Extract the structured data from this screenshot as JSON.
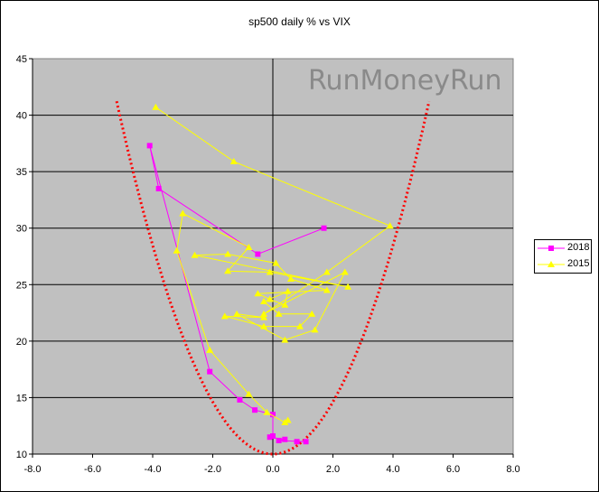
{
  "chart_data": {
    "type": "scatter",
    "title": "sp500 daily % vs VIX",
    "xlabel": "",
    "ylabel": "",
    "xlim": [
      -8,
      8
    ],
    "ylim": [
      10,
      45
    ],
    "x_ticks": [
      "-8.0",
      "-6.0",
      "-4.0",
      "-2.0",
      "0.0",
      "2.0",
      "4.0",
      "6.0",
      "8.0"
    ],
    "y_ticks": [
      "10",
      "15",
      "20",
      "25",
      "30",
      "35",
      "40",
      "45"
    ],
    "grid": "horizontal",
    "legend_position": "right",
    "plot_background": "#c0c0c0",
    "watermark": "RunMoneyRun",
    "series": [
      {
        "name": "2018",
        "color": "#ff00ff",
        "marker": "square",
        "connected": true,
        "points": [
          [
            0.8,
            11.1
          ],
          [
            1.1,
            11.1
          ],
          [
            0.2,
            11.2
          ],
          [
            0.4,
            11.3
          ],
          [
            -0.1,
            11.5
          ],
          [
            0.0,
            11.6
          ],
          [
            0.0,
            13.5
          ],
          [
            -0.6,
            13.9
          ],
          [
            -1.1,
            14.8
          ],
          [
            -2.1,
            17.3
          ],
          [
            -4.1,
            37.3
          ],
          [
            -3.8,
            33.5
          ],
          [
            -0.5,
            27.7
          ],
          [
            1.7,
            30.0
          ]
        ]
      },
      {
        "name": "2015",
        "color": "#ffff00",
        "marker": "triangle",
        "connected": true,
        "points": [
          [
            0.5,
            13.0
          ],
          [
            0.4,
            12.8
          ],
          [
            -0.2,
            13.7
          ],
          [
            -0.8,
            15.3
          ],
          [
            -2.1,
            19.2
          ],
          [
            -3.2,
            28.0
          ],
          [
            -3.0,
            31.3
          ],
          [
            -0.8,
            28.3
          ],
          [
            -1.5,
            26.2
          ],
          [
            -0.1,
            26.1
          ],
          [
            2.5,
            24.8
          ],
          [
            -2.6,
            27.6
          ],
          [
            -1.5,
            27.7
          ],
          [
            0.1,
            26.9
          ],
          [
            0.6,
            25.5
          ],
          [
            1.8,
            24.5
          ],
          [
            -0.5,
            24.2
          ],
          [
            -0.1,
            23.7
          ],
          [
            0.4,
            23.2
          ],
          [
            0.5,
            24.4
          ],
          [
            -0.3,
            23.5
          ],
          [
            0.2,
            22.4
          ],
          [
            1.3,
            22.4
          ],
          [
            0.9,
            21.3
          ],
          [
            -0.3,
            21.3
          ],
          [
            -1.6,
            22.2
          ],
          [
            -0.3,
            22.1
          ],
          [
            -1.2,
            22.4
          ],
          [
            0.4,
            20.1
          ],
          [
            1.4,
            21.0
          ],
          [
            2.4,
            26.1
          ],
          [
            -0.3,
            22.4
          ],
          [
            1.8,
            26.1
          ],
          [
            3.9,
            30.2
          ],
          [
            -1.3,
            35.9
          ],
          [
            -3.9,
            40.7
          ]
        ]
      }
    ]
  }
}
